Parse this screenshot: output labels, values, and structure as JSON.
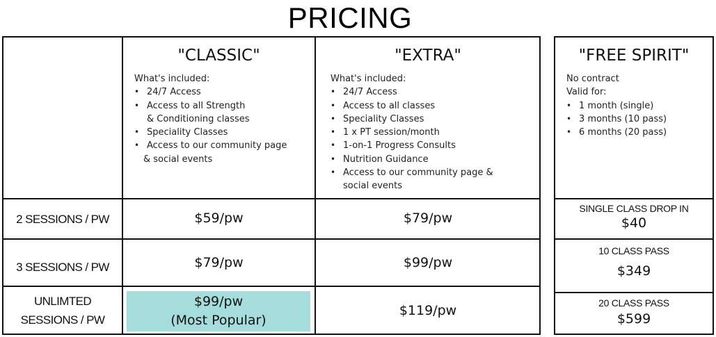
{
  "title": "PRICING",
  "plans": {
    "classic": {
      "name": "\"CLASSIC\"",
      "intro": [
        "What's included:"
      ],
      "features": [
        "24/7 Access",
        "Access to all Strength",
        "& Conditioning classes",
        "Speciality Classes",
        "Access to our community page",
        "& social events"
      ]
    },
    "extra": {
      "name": "\"EXTRA\"",
      "intro": [
        "What's included:"
      ],
      "features": [
        "24/7 Access",
        "Access to all classes",
        "Speciality Classes",
        "1 x PT session/month",
        "1-on-1 Progress Consults",
        "Nutrition Guidance",
        "Access to our community page &",
        "social events"
      ]
    },
    "free_spirit": {
      "name": "\"FREE SPIRIT\"",
      "intro": [
        "No contract",
        "Valid for:"
      ],
      "features": [
        "1 month (single)",
        "3 months (10 pass)",
        "6 months (20 pass)"
      ]
    }
  },
  "rows": [
    {
      "label_lines": [
        "2 SESSIONS / PW"
      ],
      "classic": "$59/pw",
      "extra": "$79/pw"
    },
    {
      "label_lines": [
        "3 SESSIONS / PW"
      ],
      "classic": "$79/pw",
      "extra": "$99/pw"
    },
    {
      "label_lines": [
        "UNLIMTED",
        "SESSIONS / PW"
      ],
      "classic": "$99/pw",
      "classic_note": "(Most Popular)",
      "extra": "$119/pw"
    }
  ],
  "free_spirit_options": [
    {
      "label": "SINGLE CLASS DROP IN",
      "price": "$40"
    },
    {
      "label": "10 CLASS PASS",
      "price": "$349"
    },
    {
      "label": "20 CLASS PASS",
      "price": "$599"
    }
  ],
  "colors": {
    "highlight": "#a4dddb",
    "border": "#111111"
  }
}
